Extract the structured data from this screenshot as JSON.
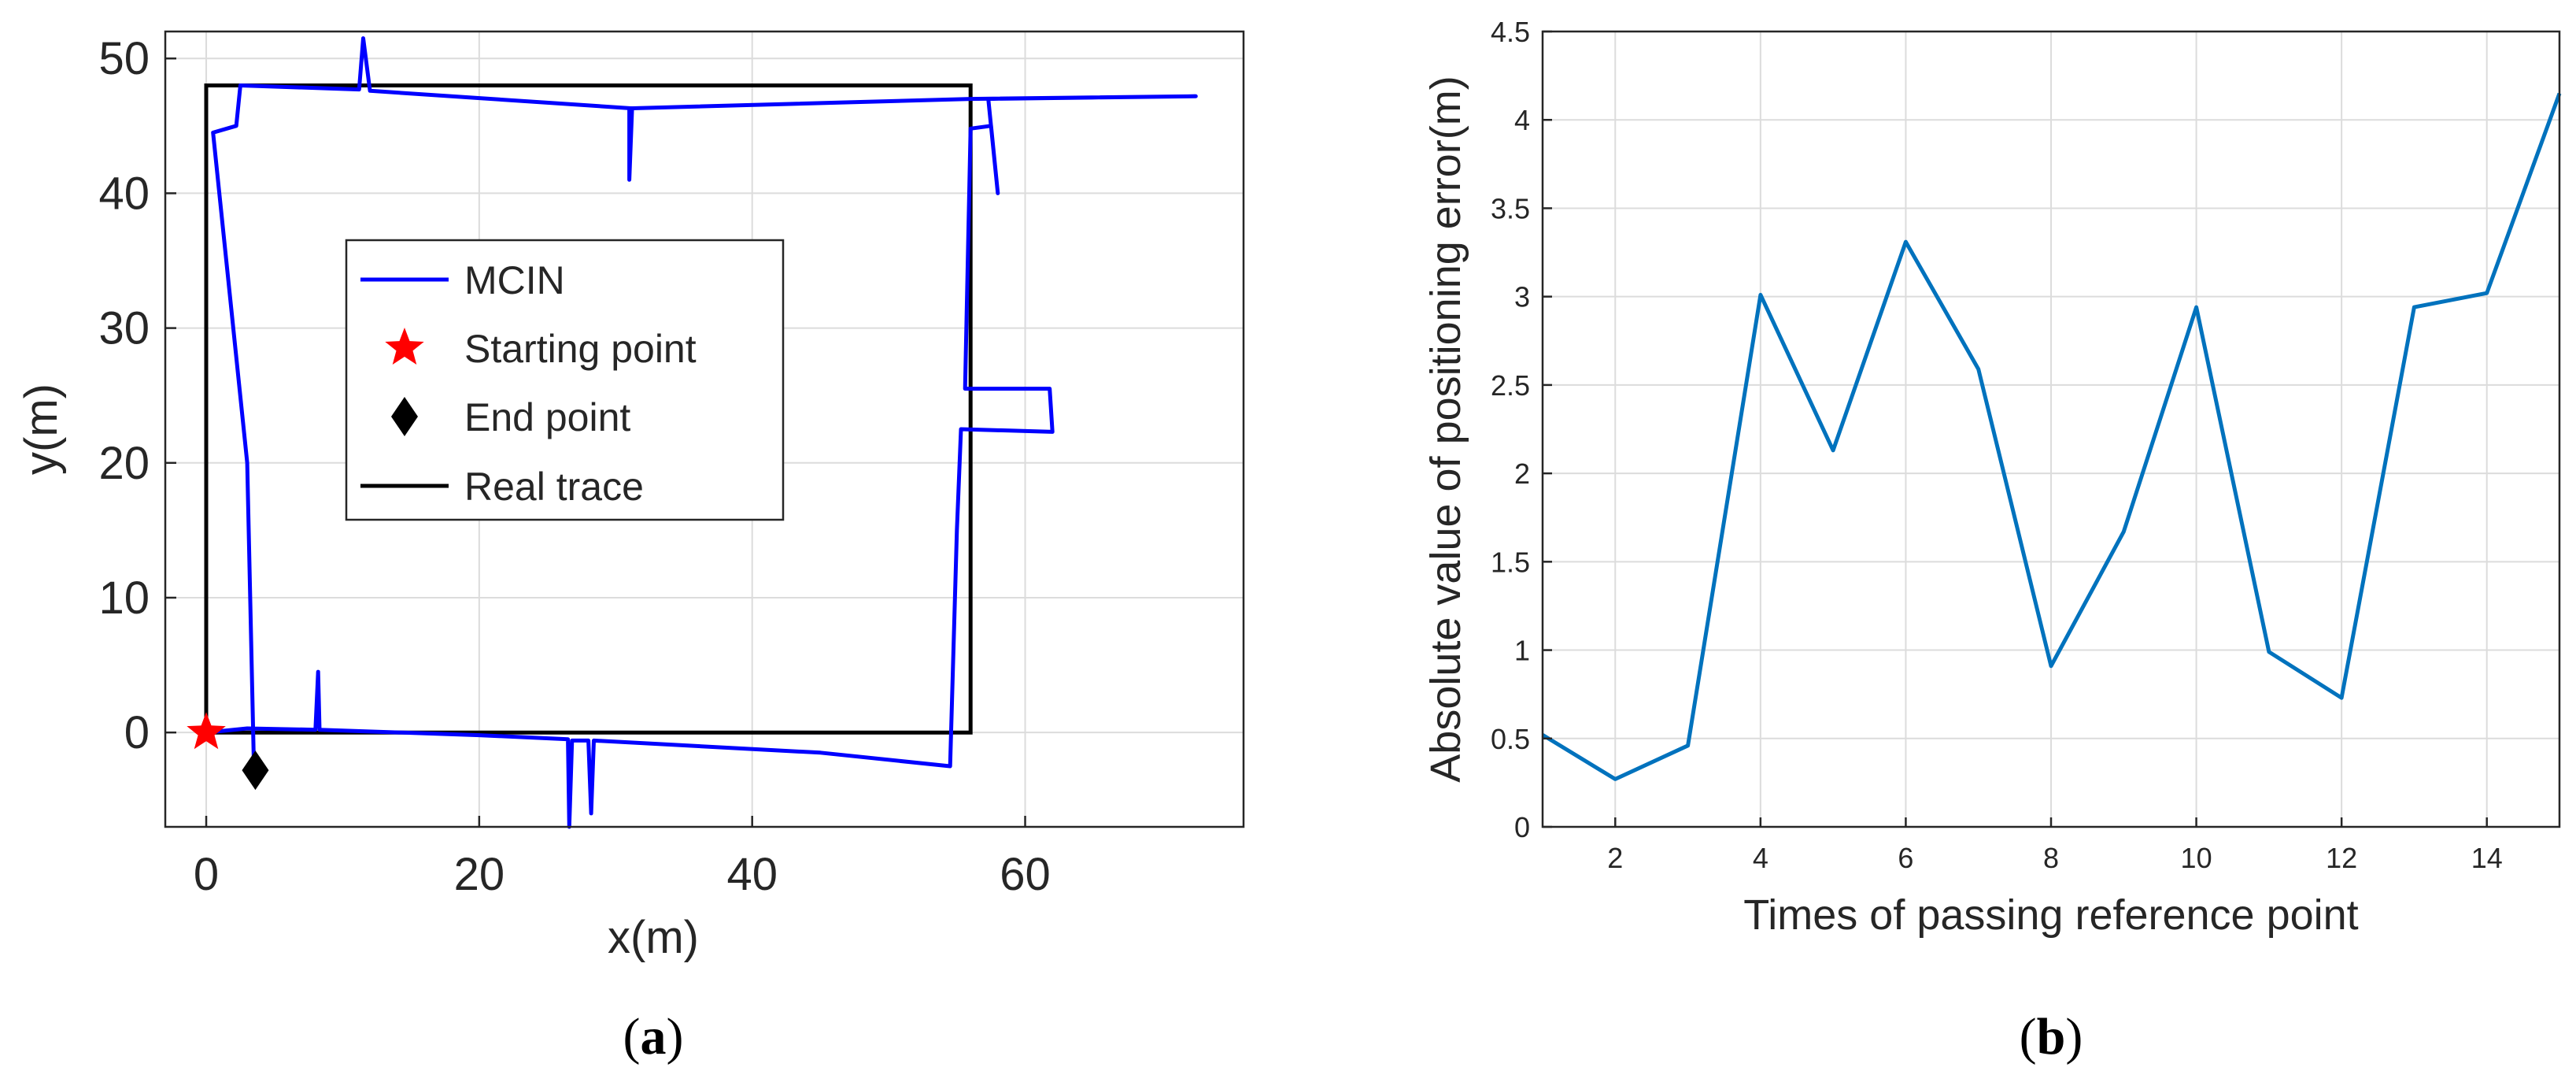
{
  "chart_data": [
    {
      "type": "line",
      "xlabel": "x(m)",
      "ylabel": "y(m)",
      "xlim": [
        -3,
        76
      ],
      "ylim": [
        -7,
        52
      ],
      "xticks": [
        0,
        20,
        40,
        60
      ],
      "yticks": [
        0,
        10,
        20,
        30,
        40,
        50
      ],
      "grid": true,
      "legend_position": "center",
      "caption": "a",
      "colors": {
        "mcin": "#0000ff",
        "real": "#000000",
        "start": "#ff0000",
        "end": "#000000",
        "grid": "#dcdcdc"
      },
      "series": [
        {
          "name": "MCIN",
          "points": [
            [
              0,
              0
            ],
            [
              3,
              0.3
            ],
            [
              8,
              0.2
            ],
            [
              8.2,
              4.5
            ],
            [
              8.3,
              0.2
            ],
            [
              20,
              -0.2
            ],
            [
              26.5,
              -0.5
            ],
            [
              26.6,
              -7
            ],
            [
              26.8,
              -0.6
            ],
            [
              28,
              -0.6
            ],
            [
              28.2,
              -6
            ],
            [
              28.4,
              -0.6
            ],
            [
              45,
              -1.5
            ],
            [
              54.5,
              -2.5
            ],
            [
              55,
              15
            ],
            [
              55.3,
              22.5
            ],
            [
              62,
              22.3
            ],
            [
              61.8,
              25.5
            ],
            [
              55.6,
              25.5
            ],
            [
              56,
              44.8
            ],
            [
              57.5,
              45
            ],
            [
              58,
              40
            ],
            [
              57.3,
              47
            ],
            [
              72.5,
              47.2
            ],
            [
              56,
              47
            ],
            [
              31,
              46.3
            ],
            [
              31,
              41
            ],
            [
              31.2,
              46.3
            ],
            [
              12,
              47.6
            ],
            [
              11.5,
              51.5
            ],
            [
              11.2,
              47.7
            ],
            [
              2.5,
              48
            ],
            [
              2.2,
              45
            ],
            [
              0.5,
              44.5
            ],
            [
              3,
              20
            ],
            [
              3.5,
              -2.7
            ]
          ]
        },
        {
          "name": "Starting point",
          "marker": "star",
          "points": [
            [
              0,
              0
            ]
          ]
        },
        {
          "name": "End point",
          "marker": "diamond",
          "points": [
            [
              3.6,
              -2.8
            ]
          ]
        },
        {
          "name": "Real trace",
          "points": [
            [
              0,
              0
            ],
            [
              56,
              0
            ],
            [
              56,
              48
            ],
            [
              0,
              48
            ],
            [
              0,
              0
            ]
          ]
        }
      ]
    },
    {
      "type": "line",
      "xlabel": "Times of passing reference point",
      "ylabel": "Absolute value of positioning error(m)",
      "xlim": [
        1,
        15
      ],
      "ylim": [
        0,
        4.5
      ],
      "xticks": [
        2,
        4,
        6,
        8,
        10,
        12,
        14
      ],
      "yticks": [
        0,
        0.5,
        1,
        1.5,
        2,
        2.5,
        3,
        3.5,
        4,
        4.5
      ],
      "grid": true,
      "caption": "b",
      "colors": {
        "line": "#0072bd",
        "grid": "#dcdcdc"
      },
      "x": [
        1,
        2,
        3,
        4,
        5,
        6,
        7,
        8,
        9,
        10,
        11,
        12,
        13,
        14,
        15
      ],
      "values": [
        0.52,
        0.27,
        0.46,
        3.01,
        2.13,
        3.31,
        2.59,
        0.91,
        1.67,
        2.94,
        0.99,
        0.73,
        2.94,
        3.02,
        4.15
      ]
    }
  ]
}
